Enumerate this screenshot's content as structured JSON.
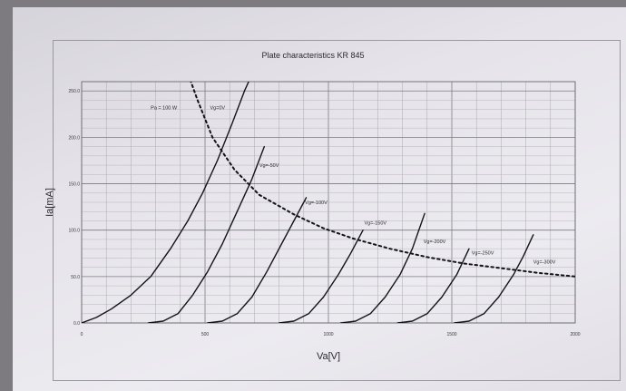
{
  "chart_data": {
    "type": "line",
    "title": "Plate characteristics KR 845",
    "xlabel": "Va[V]",
    "ylabel": "Ia[mA]",
    "xlim": [
      0,
      2000
    ],
    "ylim": [
      0,
      260
    ],
    "x_ticks": [
      {
        "value": 0,
        "label": "0"
      },
      {
        "value": 500,
        "label": "500"
      },
      {
        "value": 1000,
        "label": "1000"
      },
      {
        "value": 1500,
        "label": "1500"
      },
      {
        "value": 2000,
        "label": "2000"
      }
    ],
    "y_ticks": [
      {
        "value": 0,
        "label": "0.0"
      },
      {
        "value": 50,
        "label": "50.0"
      },
      {
        "value": 100,
        "label": "100.0"
      },
      {
        "value": 150,
        "label": "150.0"
      },
      {
        "value": 200,
        "label": "200.0"
      },
      {
        "value": 250,
        "label": "250.0"
      }
    ],
    "grid": true,
    "series": [
      {
        "label": "Vg=0V",
        "points": [
          [
            0,
            0
          ],
          [
            60,
            6
          ],
          [
            120,
            15
          ],
          [
            200,
            30
          ],
          [
            280,
            50
          ],
          [
            360,
            80
          ],
          [
            430,
            110
          ],
          [
            490,
            140
          ],
          [
            550,
            175
          ],
          [
            610,
            215
          ],
          [
            660,
            250
          ],
          [
            680,
            262
          ]
        ]
      },
      {
        "label": "Vg=-50V",
        "points": [
          [
            270,
            0
          ],
          [
            330,
            2
          ],
          [
            390,
            10
          ],
          [
            450,
            30
          ],
          [
            510,
            55
          ],
          [
            570,
            85
          ],
          [
            630,
            120
          ],
          [
            690,
            155
          ],
          [
            740,
            190
          ]
        ]
      },
      {
        "label": "Vg=-100V",
        "points": [
          [
            510,
            0
          ],
          [
            570,
            2
          ],
          [
            630,
            10
          ],
          [
            690,
            28
          ],
          [
            750,
            55
          ],
          [
            810,
            85
          ],
          [
            860,
            110
          ],
          [
            910,
            135
          ]
        ]
      },
      {
        "label": "Vg=-150V",
        "points": [
          [
            800,
            0
          ],
          [
            860,
            2
          ],
          [
            920,
            10
          ],
          [
            980,
            28
          ],
          [
            1040,
            52
          ],
          [
            1090,
            75
          ],
          [
            1140,
            100
          ]
        ]
      },
      {
        "label": "Vg=-200V",
        "points": [
          [
            1050,
            0
          ],
          [
            1110,
            2
          ],
          [
            1170,
            10
          ],
          [
            1230,
            28
          ],
          [
            1290,
            52
          ],
          [
            1340,
            80
          ],
          [
            1390,
            118
          ]
        ]
      },
      {
        "label": "Vg=-250V",
        "points": [
          [
            1280,
            0
          ],
          [
            1340,
            2
          ],
          [
            1400,
            10
          ],
          [
            1460,
            28
          ],
          [
            1520,
            52
          ],
          [
            1570,
            80
          ]
        ]
      },
      {
        "label": "Vg=-300V",
        "points": [
          [
            1510,
            0
          ],
          [
            1570,
            2
          ],
          [
            1630,
            10
          ],
          [
            1690,
            28
          ],
          [
            1750,
            52
          ],
          [
            1790,
            72
          ],
          [
            1830,
            95
          ]
        ]
      }
    ],
    "annotations": [
      {
        "text": "Pa = 100 W",
        "x": 280,
        "y": 230
      },
      {
        "text": "Vg=0V",
        "x": 520,
        "y": 230
      },
      {
        "text": "Vg=-50V",
        "x": 720,
        "y": 168
      },
      {
        "text": "Vg=-100V",
        "x": 905,
        "y": 128
      },
      {
        "text": "Vg=-150V",
        "x": 1145,
        "y": 106
      },
      {
        "text": "Vg=-200V",
        "x": 1385,
        "y": 86
      },
      {
        "text": "Vg=-250V",
        "x": 1580,
        "y": 74
      },
      {
        "text": "Vg=-300V",
        "x": 1830,
        "y": 64
      }
    ],
    "pa_curve": {
      "label": "Pa = 100 W",
      "style": "dotted",
      "points": [
        [
          440,
          262
        ],
        [
          470,
          240
        ],
        [
          530,
          200
        ],
        [
          620,
          165
        ],
        [
          720,
          138
        ],
        [
          860,
          117
        ],
        [
          980,
          102
        ],
        [
          1100,
          91
        ],
        [
          1250,
          80
        ],
        [
          1400,
          71
        ],
        [
          1550,
          64
        ],
        [
          1700,
          59
        ],
        [
          1850,
          54
        ],
        [
          2000,
          50
        ]
      ]
    }
  }
}
